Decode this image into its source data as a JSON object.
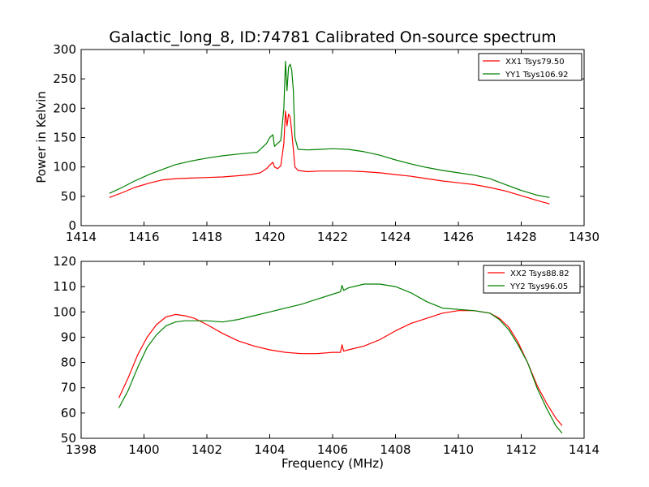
{
  "chart_data": [
    {
      "type": "line",
      "title": "Galactic_long_8, ID:74781 Calibrated On-source spectrum",
      "xlabel": "",
      "ylabel": "Power in Kelvin",
      "xlim": [
        1414,
        1430
      ],
      "ylim": [
        0,
        300
      ],
      "xticks": [
        1414,
        1416,
        1418,
        1420,
        1422,
        1424,
        1426,
        1428,
        1430
      ],
      "yticks": [
        0,
        50,
        100,
        150,
        200,
        250,
        300
      ],
      "grid": false,
      "legend_position": "top-right",
      "series": [
        {
          "name": "XX1 Tsys79.50",
          "color": "#ff0000",
          "x": [
            1414.9,
            1415.3,
            1415.7,
            1416.2,
            1416.6,
            1417.0,
            1417.5,
            1418.0,
            1418.5,
            1419.0,
            1419.4,
            1419.7,
            1419.9,
            1420.0,
            1420.1,
            1420.15,
            1420.25,
            1420.35,
            1420.45,
            1420.5,
            1420.55,
            1420.6,
            1420.65,
            1420.7,
            1420.75,
            1420.8,
            1420.9,
            1421.2,
            1421.6,
            1422.0,
            1422.5,
            1423.0,
            1423.5,
            1424.0,
            1424.5,
            1425.0,
            1425.5,
            1426.0,
            1426.5,
            1427.0,
            1427.5,
            1428.0,
            1428.5,
            1428.9
          ],
          "y": [
            48,
            56,
            65,
            73,
            78,
            80,
            81,
            82,
            83,
            85,
            87,
            90,
            97,
            103,
            108,
            100,
            97,
            102,
            140,
            195,
            170,
            190,
            185,
            160,
            130,
            100,
            94,
            92,
            93,
            93,
            93,
            92,
            90,
            87,
            84,
            80,
            76,
            73,
            70,
            65,
            59,
            51,
            43,
            37
          ]
        },
        {
          "name": "YY1 Tsys106.92",
          "color": "#008000",
          "x": [
            1414.9,
            1415.3,
            1415.7,
            1416.2,
            1416.6,
            1417.0,
            1417.5,
            1418.0,
            1418.5,
            1419.0,
            1419.4,
            1419.6,
            1419.7,
            1419.8,
            1419.9,
            1420.0,
            1420.1,
            1420.15,
            1420.25,
            1420.35,
            1420.45,
            1420.5,
            1420.55,
            1420.6,
            1420.65,
            1420.7,
            1420.75,
            1420.8,
            1420.9,
            1421.2,
            1421.6,
            1422.0,
            1422.5,
            1423.0,
            1423.5,
            1424.0,
            1424.5,
            1425.0,
            1425.5,
            1426.0,
            1426.5,
            1427.0,
            1427.5,
            1428.0,
            1428.5,
            1428.9
          ],
          "y": [
            55,
            65,
            76,
            88,
            96,
            104,
            110,
            115,
            119,
            122,
            124,
            125,
            130,
            135,
            140,
            150,
            155,
            135,
            140,
            145,
            200,
            280,
            230,
            270,
            275,
            265,
            230,
            150,
            130,
            129,
            130,
            131,
            130,
            126,
            120,
            112,
            105,
            99,
            94,
            90,
            86,
            80,
            70,
            60,
            52,
            48
          ]
        }
      ]
    },
    {
      "type": "line",
      "title": "",
      "xlabel": "Frequency (MHz)",
      "ylabel": "",
      "xlim": [
        1398,
        1414
      ],
      "ylim": [
        50,
        120
      ],
      "xticks": [
        1398,
        1400,
        1402,
        1404,
        1406,
        1408,
        1410,
        1412,
        1414
      ],
      "yticks": [
        50,
        60,
        70,
        80,
        90,
        100,
        110,
        120
      ],
      "grid": false,
      "legend_position": "top-right",
      "series": [
        {
          "name": "XX2 Tsys88.82",
          "color": "#ff0000",
          "x": [
            1399.2,
            1399.5,
            1399.8,
            1400.1,
            1400.4,
            1400.7,
            1401.0,
            1401.3,
            1401.6,
            1402.0,
            1402.5,
            1403.0,
            1403.5,
            1404.0,
            1404.5,
            1405.0,
            1405.5,
            1406.0,
            1406.25,
            1406.3,
            1406.35,
            1406.5,
            1407.0,
            1407.5,
            1408.0,
            1408.5,
            1409.0,
            1409.5,
            1410.0,
            1410.5,
            1411.0,
            1411.3,
            1411.6,
            1411.9,
            1412.2,
            1412.5,
            1412.8,
            1413.1,
            1413.3
          ],
          "y": [
            66,
            74,
            83,
            90,
            95,
            98,
            99,
            98.5,
            97.5,
            95,
            91.5,
            88.5,
            86.5,
            85,
            84,
            83.5,
            83.5,
            84,
            84,
            87,
            84.5,
            85,
            86.5,
            89,
            92.5,
            95.5,
            97.5,
            99.5,
            100.5,
            100.5,
            99.5,
            97.5,
            94,
            88,
            80,
            71,
            64,
            58,
            55
          ]
        },
        {
          "name": "YY2 Tsys96.05",
          "color": "#008000",
          "x": [
            1399.2,
            1399.5,
            1399.8,
            1400.1,
            1400.4,
            1400.7,
            1401.0,
            1401.3,
            1401.6,
            1402.0,
            1402.5,
            1403.0,
            1403.5,
            1404.0,
            1404.5,
            1405.0,
            1405.5,
            1406.0,
            1406.25,
            1406.3,
            1406.35,
            1406.5,
            1407.0,
            1407.5,
            1408.0,
            1408.5,
            1409.0,
            1409.5,
            1410.0,
            1410.5,
            1411.0,
            1411.3,
            1411.6,
            1411.9,
            1412.2,
            1412.5,
            1412.8,
            1413.1,
            1413.3
          ],
          "y": [
            62,
            69,
            78,
            86,
            91,
            94.5,
            96,
            96.5,
            96.5,
            96.5,
            96,
            97,
            98.5,
            100,
            101.5,
            103,
            105,
            107,
            108,
            110.5,
            108.5,
            109.5,
            111,
            111,
            110,
            107.5,
            104,
            101.5,
            101,
            100.5,
            99.5,
            97,
            93,
            87,
            80,
            70,
            62,
            55,
            52
          ]
        }
      ]
    }
  ]
}
